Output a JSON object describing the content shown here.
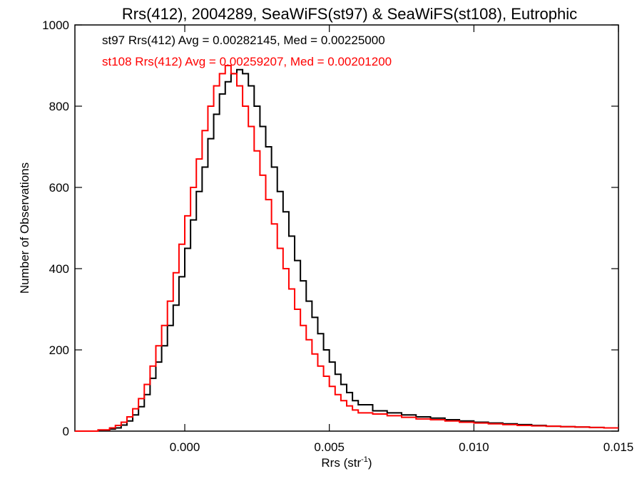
{
  "chart_data": {
    "type": "line",
    "title": "Rrs(412), 2004289, SeaWiFS(st97) & SeaWiFS(st108), Eutrophic",
    "xlabel_main": "Rrs (str",
    "xlabel_sup": "-1",
    "xlabel_close": ")",
    "ylabel": "Number of Observations",
    "xlim": [
      -0.0038,
      0.015
    ],
    "ylim": [
      0,
      1000
    ],
    "x_ticks": [
      {
        "value": 0.0,
        "label": "0.000"
      },
      {
        "value": 0.005,
        "label": "0.005"
      },
      {
        "value": 0.01,
        "label": "0.010"
      },
      {
        "value": 0.015,
        "label": "0.015"
      }
    ],
    "y_ticks": [
      {
        "value": 0,
        "label": "0"
      },
      {
        "value": 200,
        "label": "200"
      },
      {
        "value": 400,
        "label": "400"
      },
      {
        "value": 600,
        "label": "600"
      },
      {
        "value": 800,
        "label": "800"
      },
      {
        "value": 1000,
        "label": "1000"
      }
    ],
    "grid": false,
    "step_style": "histogram",
    "series": [
      {
        "name": "st97",
        "annotation": "st97 Rrs(412) Avg = 0.00282145, Med = 0.00225000",
        "color": "#000000",
        "x": [
          -0.0038,
          -0.003,
          -0.0026,
          -0.0024,
          -0.0022,
          -0.002,
          -0.0018,
          -0.0016,
          -0.0014,
          -0.0012,
          -0.001,
          -0.0008,
          -0.0006,
          -0.0004,
          -0.0002,
          0.0,
          0.0002,
          0.0004,
          0.0006,
          0.0008,
          0.001,
          0.0012,
          0.0014,
          0.0016,
          0.0018,
          0.002,
          0.0022,
          0.0024,
          0.0026,
          0.0028,
          0.003,
          0.0032,
          0.0034,
          0.0036,
          0.0038,
          0.004,
          0.0042,
          0.0044,
          0.0046,
          0.0048,
          0.005,
          0.0052,
          0.0054,
          0.0056,
          0.0058,
          0.006,
          0.0065,
          0.007,
          0.0075,
          0.008,
          0.0085,
          0.009,
          0.0095,
          0.01,
          0.0105,
          0.011,
          0.0115,
          0.012,
          0.0125,
          0.013,
          0.0135,
          0.014,
          0.0145,
          0.015
        ],
        "y": [
          0,
          2,
          5,
          8,
          15,
          25,
          40,
          60,
          90,
          130,
          170,
          210,
          260,
          310,
          380,
          450,
          520,
          590,
          650,
          720,
          780,
          830,
          860,
          880,
          890,
          880,
          850,
          800,
          750,
          700,
          650,
          590,
          540,
          480,
          420,
          370,
          320,
          280,
          240,
          200,
          170,
          140,
          115,
          95,
          75,
          65,
          50,
          45,
          40,
          35,
          32,
          28,
          25,
          22,
          20,
          18,
          16,
          14,
          12,
          11,
          10,
          9,
          8,
          8
        ]
      },
      {
        "name": "st108",
        "annotation": "st108 Rrs(412) Avg = 0.00259207, Med = 0.00201200",
        "color": "#ff0000",
        "x": [
          -0.0038,
          -0.003,
          -0.0026,
          -0.0024,
          -0.0022,
          -0.002,
          -0.0018,
          -0.0016,
          -0.0014,
          -0.0012,
          -0.001,
          -0.0008,
          -0.0006,
          -0.0004,
          -0.0002,
          0.0,
          0.0002,
          0.0004,
          0.0006,
          0.0008,
          0.001,
          0.0012,
          0.0014,
          0.0016,
          0.0018,
          0.002,
          0.0022,
          0.0024,
          0.0026,
          0.0028,
          0.003,
          0.0032,
          0.0034,
          0.0036,
          0.0038,
          0.004,
          0.0042,
          0.0044,
          0.0046,
          0.0048,
          0.005,
          0.0052,
          0.0054,
          0.0056,
          0.0058,
          0.006,
          0.0065,
          0.007,
          0.0075,
          0.008,
          0.0085,
          0.009,
          0.0095,
          0.01,
          0.0105,
          0.011,
          0.0115,
          0.012,
          0.0125,
          0.013,
          0.0135,
          0.014,
          0.0145,
          0.015
        ],
        "y": [
          0,
          3,
          8,
          14,
          22,
          35,
          55,
          80,
          115,
          160,
          210,
          260,
          320,
          390,
          460,
          530,
          600,
          670,
          740,
          800,
          850,
          880,
          900,
          880,
          850,
          800,
          750,
          690,
          630,
          570,
          510,
          450,
          400,
          350,
          300,
          260,
          225,
          190,
          160,
          135,
          110,
          90,
          75,
          62,
          52,
          45,
          42,
          38,
          34,
          30,
          28,
          25,
          22,
          20,
          18,
          16,
          14,
          13,
          12,
          11,
          10,
          9,
          8,
          8
        ]
      }
    ]
  }
}
